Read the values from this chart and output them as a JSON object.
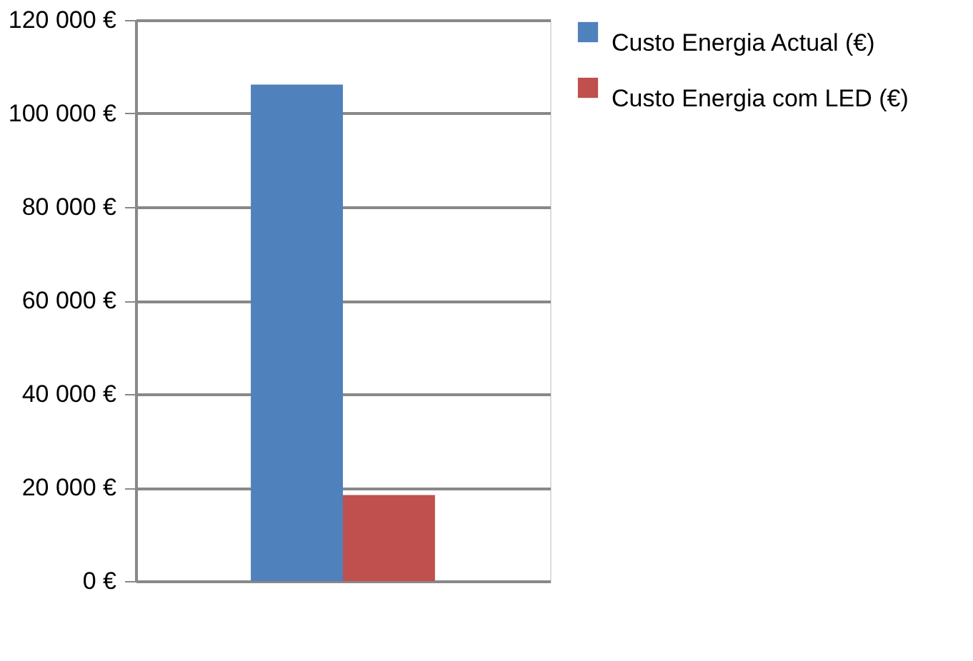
{
  "chart_data": {
    "type": "bar",
    "categories": [
      null
    ],
    "series": [
      {
        "name": "Custo Energia Actual (€)",
        "color": "#4f81bd",
        "values": [
          106200
        ]
      },
      {
        "name": "Custo Energia com LED (€)",
        "color": "#c0504d",
        "values": [
          18400
        ]
      }
    ],
    "ylim": [
      0,
      120000
    ],
    "yticks": [
      {
        "value": 0,
        "label": "0 €"
      },
      {
        "value": 20000,
        "label": "20 000 €"
      },
      {
        "value": 40000,
        "label": "40 000 €"
      },
      {
        "value": 60000,
        "label": "60 000 €"
      },
      {
        "value": 80000,
        "label": "80 000 €"
      },
      {
        "value": 100000,
        "label": "100 000 €"
      },
      {
        "value": 120000,
        "label": "120 000 €"
      }
    ],
    "grid": "y",
    "legend": "right"
  }
}
